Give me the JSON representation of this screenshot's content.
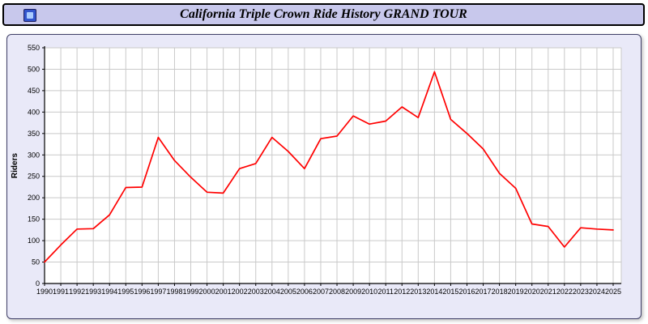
{
  "window": {
    "title": "California Triple Crown Ride History GRAND TOUR",
    "icon": "chart-window-icon"
  },
  "chart_data": {
    "type": "line",
    "title": "California Triple Crown Ride History GRAND TOUR",
    "xlabel": "",
    "ylabel": "Riders",
    "ylim": [
      0,
      550
    ],
    "ytick_step": 50,
    "grid": true,
    "legend_position": "none",
    "x": [
      1990,
      1991,
      1992,
      1993,
      1994,
      1995,
      1996,
      1997,
      1998,
      1999,
      2000,
      2001,
      2002,
      2003,
      2004,
      2005,
      2006,
      2007,
      2008,
      2009,
      2010,
      2011,
      2012,
      2013,
      2014,
      2015,
      2016,
      2017,
      2018,
      2019,
      2020,
      2021,
      2022,
      2023,
      2024,
      2025
    ],
    "series": [
      {
        "name": "Riders",
        "color": "#ff0000",
        "values": [
          50,
          90,
          127,
          128,
          160,
          224,
          225,
          341,
          287,
          248,
          213,
          211,
          268,
          280,
          341,
          308,
          268,
          338,
          344,
          391,
          372,
          379,
          412,
          387,
          494,
          383,
          350,
          314,
          257,
          222,
          139,
          133,
          85,
          130,
          127,
          125
        ]
      }
    ]
  },
  "colors": {
    "titlebar_bg": "#c8c8ec",
    "titlebar_border": "#000000",
    "icon_bg": "#3355cc",
    "panel_bg": "#e9e9f8",
    "panel_border": "#404068",
    "plot_bg": "#ffffff",
    "grid": "#c9c9c9",
    "axis": "#000000",
    "line": "#ff0000"
  }
}
